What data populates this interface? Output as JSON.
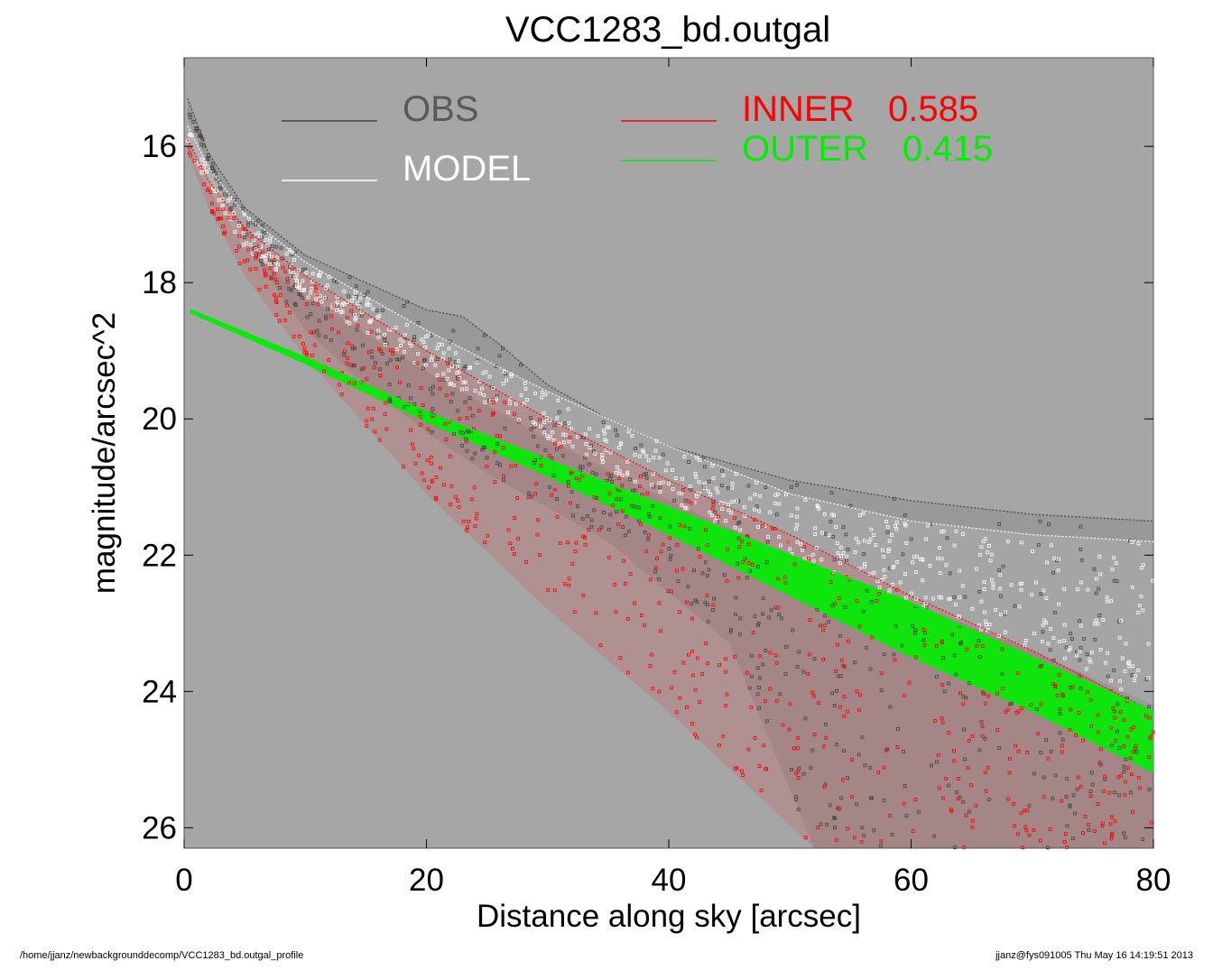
{
  "chart_data": {
    "type": "scatter",
    "title": "VCC1283_bd.outgal",
    "xlabel": "Distance along sky [arcsec]",
    "ylabel": "magnitude/arcsec^2",
    "xlim": [
      0,
      80
    ],
    "ylim": [
      26.3,
      14.7
    ],
    "y_inverted": true,
    "xticks": [
      0,
      20,
      40,
      60,
      80
    ],
    "yticks": [
      16,
      18,
      20,
      22,
      24,
      26
    ],
    "background_color": "#a6a6a6",
    "grid": false,
    "legend": [
      {
        "name": "OBS",
        "color": "#444444",
        "text_color": "#595959"
      },
      {
        "name": "MODEL",
        "color": "#ffffff",
        "text_color": "#ffffff"
      },
      {
        "name": "INNER",
        "value": "0.585",
        "color": "#ff0000",
        "text_color": "#ff0000"
      },
      {
        "name": "OUTER",
        "value": "0.415",
        "color": "#00ee00",
        "text_color": "#00ee00"
      }
    ],
    "series": [
      {
        "name": "OBS",
        "color": "#444444",
        "upper_edge": [
          [
            0.3,
            15.3
          ],
          [
            2,
            16.1
          ],
          [
            5,
            16.9
          ],
          [
            10,
            17.6
          ],
          [
            15,
            18.0
          ],
          [
            20,
            18.4
          ],
          [
            23,
            18.5
          ],
          [
            26,
            18.9
          ],
          [
            30,
            19.5
          ],
          [
            35,
            20.0
          ],
          [
            40,
            20.4
          ],
          [
            50,
            20.9
          ],
          [
            60,
            21.2
          ],
          [
            70,
            21.4
          ],
          [
            80,
            21.5
          ]
        ],
        "lower_edge": [
          [
            0.3,
            15.6
          ],
          [
            5,
            17.4
          ],
          [
            10,
            18.7
          ],
          [
            15,
            19.5
          ],
          [
            20,
            20.2
          ],
          [
            25,
            20.8
          ],
          [
            35,
            21.8
          ],
          [
            45,
            23.3
          ],
          [
            52,
            26.3
          ],
          [
            60,
            26.3
          ],
          [
            70,
            26.3
          ],
          [
            80,
            26.3
          ]
        ]
      },
      {
        "name": "MODEL",
        "color": "#ffffff",
        "upper_edge": [
          [
            0.3,
            15.7
          ],
          [
            2,
            16.3
          ],
          [
            5,
            17.0
          ],
          [
            10,
            17.7
          ],
          [
            20,
            18.7
          ],
          [
            30,
            19.6
          ],
          [
            40,
            20.4
          ],
          [
            50,
            21.1
          ],
          [
            60,
            21.5
          ],
          [
            70,
            21.7
          ],
          [
            80,
            21.8
          ]
        ],
        "lower_edge": [
          [
            0.3,
            16.1
          ],
          [
            5,
            17.5
          ],
          [
            10,
            18.2
          ],
          [
            20,
            19.3
          ],
          [
            30,
            20.3
          ],
          [
            40,
            21.2
          ],
          [
            50,
            22.0
          ],
          [
            60,
            22.7
          ],
          [
            70,
            23.4
          ],
          [
            80,
            24.2
          ]
        ]
      },
      {
        "name": "INNER",
        "color": "#ff0000",
        "upper_edge": [
          [
            0.3,
            15.9
          ],
          [
            2,
            16.5
          ],
          [
            5,
            17.2
          ],
          [
            10,
            17.9
          ],
          [
            20,
            19.0
          ],
          [
            30,
            20.0
          ],
          [
            40,
            20.9
          ],
          [
            50,
            21.7
          ],
          [
            60,
            22.6
          ],
          [
            70,
            23.4
          ],
          [
            80,
            24.3
          ]
        ],
        "lower_edge": [
          [
            0.3,
            16.1
          ],
          [
            2,
            16.9
          ],
          [
            5,
            17.9
          ],
          [
            10,
            19.1
          ],
          [
            15,
            20.1
          ],
          [
            20,
            21.1
          ],
          [
            30,
            22.8
          ],
          [
            40,
            24.3
          ],
          [
            46,
            25.3
          ],
          [
            52,
            26.3
          ],
          [
            80,
            26.3
          ]
        ]
      },
      {
        "name": "OUTER",
        "color": "#00ee00",
        "upper_edge": [
          [
            0.5,
            18.4
          ],
          [
            10,
            19.1
          ],
          [
            20,
            19.9
          ],
          [
            30,
            20.6
          ],
          [
            40,
            21.3
          ],
          [
            50,
            22.0
          ],
          [
            60,
            22.7
          ],
          [
            70,
            23.5
          ],
          [
            80,
            24.3
          ]
        ],
        "lower_edge": [
          [
            0.5,
            18.45
          ],
          [
            10,
            19.2
          ],
          [
            20,
            20.05
          ],
          [
            30,
            20.85
          ],
          [
            40,
            21.7
          ],
          [
            50,
            22.6
          ],
          [
            60,
            23.5
          ],
          [
            70,
            24.3
          ],
          [
            80,
            25.2
          ]
        ]
      }
    ]
  },
  "footer": {
    "path": "/home/jjanz/newbackgrounddecomp/VCC1283_bd.outgal_profile",
    "stamp": "jjanz@fys091005  Thu May 16 14:19:51 2013"
  }
}
